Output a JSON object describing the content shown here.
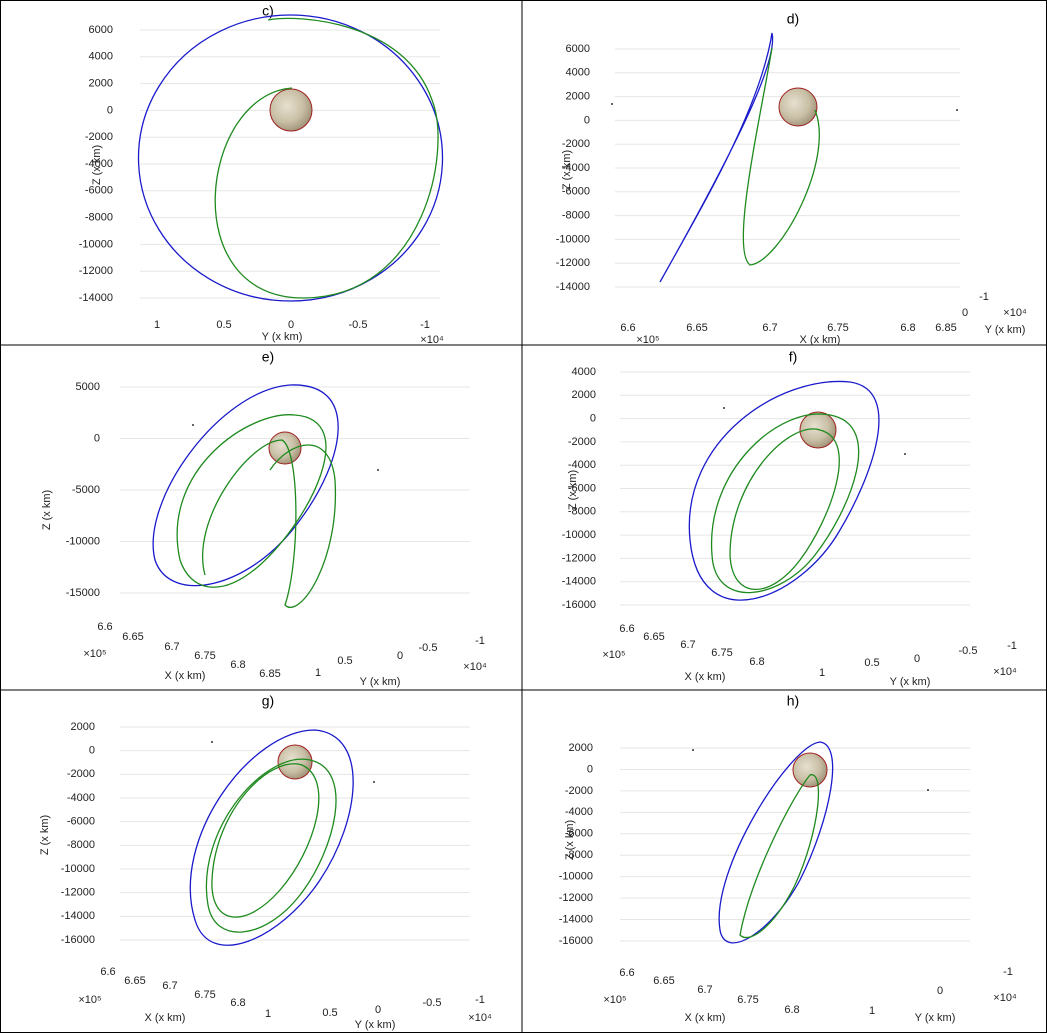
{
  "panels": [
    {
      "label": "c)",
      "zlabel": "Z (x km)",
      "zticks": [
        6000,
        4000,
        2000,
        0,
        -2000,
        -4000,
        -6000,
        -8000,
        -10000,
        -12000,
        -14000
      ],
      "xlabel": "Y (x km)",
      "xticks": [
        1,
        0.5,
        0,
        -0.5,
        -1
      ],
      "xexp": "×10⁴"
    },
    {
      "label": "d)",
      "zlabel": "Z (x km)",
      "zticks": [
        6000,
        4000,
        2000,
        0,
        -2000,
        -4000,
        -6000,
        -8000,
        -10000,
        -12000,
        -14000
      ],
      "xlabel": "X (x km)",
      "xticks": [
        6.6,
        6.65,
        6.7,
        6.75,
        6.8,
        6.85
      ],
      "xexp": "×10⁵",
      "ylabel": "Y (x km)",
      "yticks": [
        -1,
        0
      ],
      "yexp": "×10⁴"
    },
    {
      "label": "e)",
      "zlabel": "Z (x km)",
      "zticks": [
        5000,
        0,
        -5000,
        -10000,
        -15000
      ],
      "xlabel": "X (x km)",
      "xticks": [
        6.6,
        6.65,
        6.7,
        6.75,
        6.8,
        6.85
      ],
      "xexp": "×10⁵",
      "ylabel": "Y (x km)",
      "yticks": [
        1,
        0.5,
        0,
        -0.5,
        -1
      ],
      "yexp": "×10⁴"
    },
    {
      "label": "f)",
      "zlabel": "Z (x km)",
      "zticks": [
        4000,
        2000,
        0,
        -2000,
        -4000,
        -6000,
        -8000,
        -10000,
        -12000,
        -14000,
        -16000
      ],
      "xlabel": "X (x km)",
      "xticks": [
        6.6,
        6.65,
        6.7,
        6.75,
        6.8
      ],
      "xexp": "×10⁵",
      "ylabel": "Y (x km)",
      "yticks": [
        1,
        0.5,
        0,
        -0.5,
        -1
      ],
      "yexp": "×10⁴"
    },
    {
      "label": "g)",
      "zlabel": "Z (x km)",
      "zticks": [
        2000,
        0,
        -2000,
        -4000,
        -6000,
        -8000,
        -10000,
        -12000,
        -14000,
        -16000
      ],
      "xlabel": "X (x km)",
      "xticks": [
        6.6,
        6.65,
        6.7,
        6.75,
        6.8
      ],
      "xexp": "×10⁵",
      "ylabel": "Y (x km)",
      "yticks": [
        1,
        0.5,
        0,
        -0.5,
        -1
      ],
      "yexp": "×10⁴"
    },
    {
      "label": "h)",
      "zlabel": "Z (x km)",
      "zticks": [
        2000,
        0,
        -2000,
        -4000,
        -6000,
        -8000,
        -10000,
        -12000,
        -14000,
        -16000
      ],
      "xlabel": "X (x km)",
      "xticks": [
        6.6,
        6.65,
        6.7,
        6.75,
        6.8
      ],
      "xexp": "×10⁵",
      "ylabel": "Y (x km)",
      "yticks": [
        -1,
        0,
        1
      ],
      "yexp": "×10⁴"
    }
  ]
}
